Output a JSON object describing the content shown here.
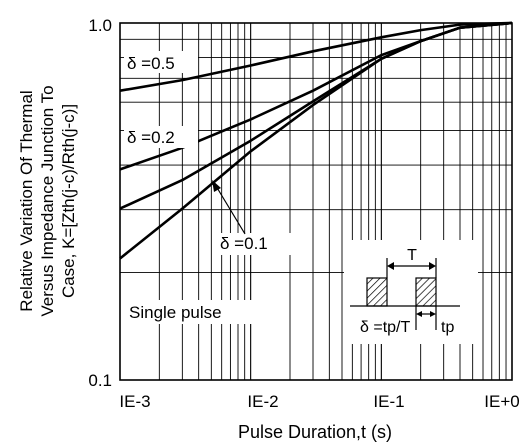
{
  "chart_data": {
    "type": "line",
    "xscale": "log",
    "yscale": "log",
    "xlim": [
      0.001,
      1
    ],
    "ylim": [
      0.1,
      1
    ],
    "grid": true,
    "title": "",
    "xlabel": "Pulse Duration,t (s)",
    "ylabel_lines": [
      "Relative Variation Of Thermal",
      "Versus Impedance Junction To",
      "Case, K=[Zth(j-c)/Rth(j-c)]"
    ],
    "x_tick_labels": [
      {
        "x": 0.001,
        "label": "IE-3"
      },
      {
        "x": 0.01,
        "label": "IE-2"
      },
      {
        "x": 0.1,
        "label": "IE-1"
      },
      {
        "x": 1,
        "label": "IE+0"
      }
    ],
    "y_tick_labels": [
      {
        "y": 1.0,
        "label": "1.0"
      },
      {
        "y": 0.1,
        "label": "0.1"
      }
    ],
    "series": [
      {
        "name": "δ =0.5",
        "points": [
          [
            0.001,
            0.646
          ],
          [
            0.003,
            0.692
          ],
          [
            0.01,
            0.76
          ],
          [
            0.03,
            0.833
          ],
          [
            0.1,
            0.912
          ],
          [
            0.2,
            0.955
          ],
          [
            0.4,
            0.99
          ],
          [
            1,
            1.0
          ]
        ]
      },
      {
        "name": "δ =0.2",
        "points": [
          [
            0.001,
            0.389
          ],
          [
            0.003,
            0.447
          ],
          [
            0.01,
            0.537
          ],
          [
            0.03,
            0.646
          ],
          [
            0.1,
            0.813
          ],
          [
            0.2,
            0.89
          ],
          [
            0.4,
            0.97
          ],
          [
            1,
            1.0
          ]
        ]
      },
      {
        "name": "δ =0.1",
        "points": [
          [
            0.001,
            0.302
          ],
          [
            0.003,
            0.363
          ],
          [
            0.01,
            0.468
          ],
          [
            0.03,
            0.603
          ],
          [
            0.1,
            0.794
          ],
          [
            0.2,
            0.89
          ],
          [
            0.4,
            0.97
          ],
          [
            1,
            1.0
          ]
        ]
      },
      {
        "name": "Single pulse",
        "points": [
          [
            0.001,
            0.219
          ],
          [
            0.003,
            0.302
          ],
          [
            0.01,
            0.437
          ],
          [
            0.03,
            0.589
          ],
          [
            0.1,
            0.794
          ],
          [
            0.2,
            0.89
          ],
          [
            0.4,
            0.97
          ],
          [
            1,
            1.0
          ]
        ]
      }
    ],
    "inset": {
      "period_label": "T",
      "width_label": "tp",
      "formula": "δ =tp/T"
    }
  }
}
